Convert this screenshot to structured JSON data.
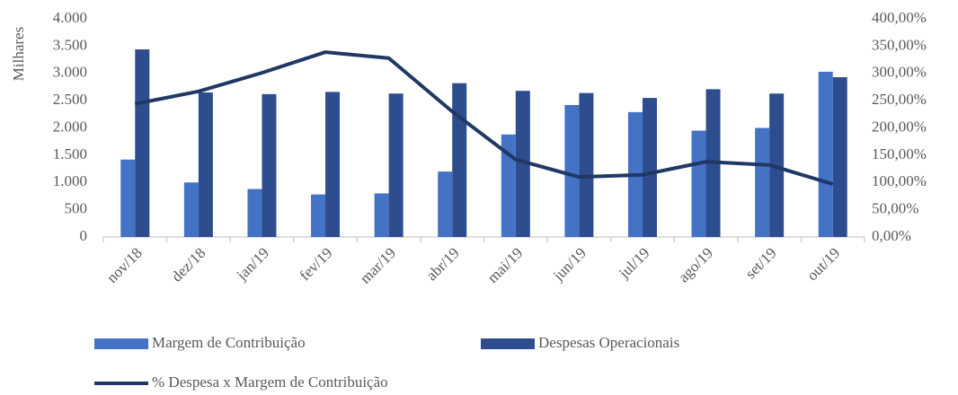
{
  "chart_data": {
    "type": "bar",
    "y_axis_label": "Milhares",
    "categories": [
      "nov/18",
      "dez/18",
      "jan/19",
      "fev/19",
      "mar/19",
      "abr/19",
      "mai/19",
      "jun/19",
      "jul/19",
      "ago/19",
      "set/19",
      "out/19"
    ],
    "series": [
      {
        "name": "Margem de Contribuição",
        "type": "bar",
        "color": "#4472c4",
        "values": [
          1420,
          1000,
          880,
          780,
          800,
          1200,
          1880,
          2420,
          2290,
          1950,
          2000,
          3030
        ]
      },
      {
        "name": "Despesas Operacionais",
        "type": "bar",
        "color": "#2e4d8e",
        "values": [
          3440,
          2650,
          2620,
          2660,
          2630,
          2820,
          2680,
          2640,
          2550,
          2710,
          2630,
          2930
        ]
      },
      {
        "name": "% Despesa x Margem de Contribuição",
        "type": "line",
        "axis": "y2",
        "color": "#1f3864",
        "values": [
          244,
          267,
          301,
          339,
          328,
          230,
          142,
          110,
          114,
          138,
          132,
          97
        ]
      }
    ],
    "ylim": [
      0,
      4000
    ],
    "yticks": [
      0,
      {
        "value": 500,
        "label": "500"
      },
      {
        "value": 1000,
        "label": "1.000"
      },
      {
        "value": 1500,
        "label": "1.500"
      },
      {
        "value": 2000,
        "label": "2.000"
      },
      {
        "value": 2500,
        "label": "2.500"
      },
      {
        "value": 3000,
        "label": "3.000"
      },
      {
        "value": 3500,
        "label": "3.500"
      },
      {
        "value": 4000,
        "label": "4.000"
      }
    ],
    "y2lim": [
      0,
      400
    ],
    "y2ticks": [
      {
        "value": 0,
        "label": "0,00%"
      },
      {
        "value": 50,
        "label": "50,00%"
      },
      {
        "value": 100,
        "label": "100,00%"
      },
      {
        "value": 150,
        "label": "150,00%"
      },
      {
        "value": 200,
        "label": "200,00%"
      },
      {
        "value": 250,
        "label": "250,00%"
      },
      {
        "value": 300,
        "label": "300,00%"
      },
      {
        "value": 350,
        "label": "350,00%"
      },
      {
        "value": 400,
        "label": "400,00%"
      }
    ],
    "grid": false
  }
}
